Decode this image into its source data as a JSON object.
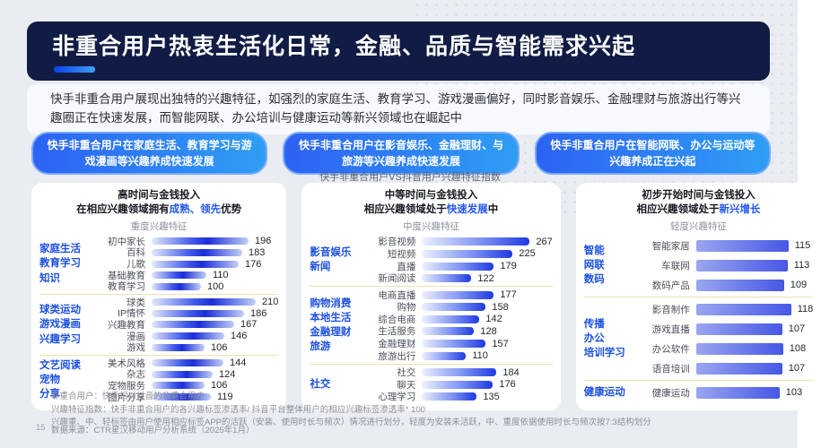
{
  "header": {
    "title": "非重合用户热衷生活化日常，金融、品质与智能需求兴起"
  },
  "intro": "快手非重合用户展现出独特的兴趣特征，如强烈的家庭生活、教育学习、游戏漫画偏好，同时影音娱乐、金融理财与旅游出行等兴趣圈正在快速发展，而智能网联、办公培训与健康运动等新兴领域也在崛起中",
  "chart_caption": "快手非重合用户VS抖音用户兴趣特征指数",
  "colors": {
    "banner_bg": "#101c44",
    "accent_blue": "#2458f0",
    "pill_gradient": [
      "#2d62f3",
      "#2f9ef4"
    ],
    "bar_deep_blue": "#1e3ae2",
    "group_label_blue": "#1d50e0",
    "separator_tan": "#eee0ae",
    "page_bg": "#e9ecf1"
  },
  "chart_data": {
    "type": "bar",
    "title": "快手非重合用户VS抖音用户兴趣特征指数",
    "note": "横向条形图三联，数值为兴趣特征指数（基准100）",
    "xlim": [
      0,
      270
    ],
    "columns": [
      {
        "pill": "快手非重合用户在家庭生活、教育学习与游戏漫画等兴趣养成快速发展",
        "subtitle_line1": "高时间与金钱投入",
        "subtitle_line2_pre": "在相应兴趣领域拥有",
        "subtitle_line2_highlight": "成熟、领先",
        "subtitle_line2_suffix": "优势",
        "degree_label": "重度兴趣特征",
        "groups": [
          {
            "label_lines": [
              "家庭生活",
              "教育学习",
              "知识"
            ],
            "rows": [
              {
                "name": "初中家长",
                "value": 196
              },
              {
                "name": "百科",
                "value": 183
              },
              {
                "name": "儿歌",
                "value": 176
              },
              {
                "name": "基础教育",
                "value": 110
              },
              {
                "name": "教育学习",
                "value": 100
              }
            ]
          },
          {
            "label_lines": [
              "球类运动",
              "游戏漫画",
              "兴趣学习"
            ],
            "rows": [
              {
                "name": "球类",
                "value": 210
              },
              {
                "name": "IP情怀",
                "value": 186
              },
              {
                "name": "兴趣教育",
                "value": 167
              },
              {
                "name": "漫画",
                "value": 146
              },
              {
                "name": "游戏",
                "value": 106
              }
            ]
          },
          {
            "label_lines": [
              "文艺阅读",
              "宠物",
              "分享"
            ],
            "rows": [
              {
                "name": "美术风格",
                "value": 144
              },
              {
                "name": "杂志",
                "value": 124
              },
              {
                "name": "宠物服务",
                "value": 106
              },
              {
                "name": "图片分享",
                "value": 119
              }
            ]
          }
        ]
      },
      {
        "pill": "快手非重合用户在影音娱乐、金融理财、与旅游等兴趣养成快速发展",
        "subtitle_line1": "中等时间与金钱投入",
        "subtitle_line2_pre": "相应兴趣领域处于",
        "subtitle_line2_highlight": "快速发展",
        "subtitle_line2_suffix": "中",
        "degree_label": "中度兴趣特征",
        "groups": [
          {
            "label_lines": [
              "影音娱乐",
              "新闻"
            ],
            "rows": [
              {
                "name": "影音视频",
                "value": 267
              },
              {
                "name": "短视频",
                "value": 225
              },
              {
                "name": "直播",
                "value": 179
              },
              {
                "name": "新闻阅读",
                "value": 122
              }
            ]
          },
          {
            "label_lines": [
              "购物消费",
              "本地生活",
              "金融理财",
              "旅游"
            ],
            "rows": [
              {
                "name": "电商直播",
                "value": 177
              },
              {
                "name": "购物",
                "value": 158
              },
              {
                "name": "综合电商",
                "value": 142
              },
              {
                "name": "生活服务",
                "value": 128
              },
              {
                "name": "金融理财",
                "value": 157
              },
              {
                "name": "旅游出行",
                "value": 110
              }
            ]
          },
          {
            "label_lines": [
              "社交"
            ],
            "rows": [
              {
                "name": "社交",
                "value": 184
              },
              {
                "name": "聊天",
                "value": 176
              },
              {
                "name": "心理学习",
                "value": 135
              }
            ]
          }
        ]
      },
      {
        "pill": "快手非重合用户在智能网联、办公与运动等兴趣养成正在兴起",
        "subtitle_line1": "初步开始时间与金钱投入",
        "subtitle_line2_pre": "相应兴趣领域处于",
        "subtitle_line2_highlight": "新兴增长",
        "subtitle_line2_suffix": "",
        "degree_label": "轻度兴趣特征",
        "groups": [
          {
            "label_lines": [
              "智能",
              "网联",
              "数码"
            ],
            "rows": [
              {
                "name": "智能家居",
                "value": 115
              },
              {
                "name": "车联网",
                "value": 113
              },
              {
                "name": "数码产品",
                "value": 109
              }
            ]
          },
          {
            "label_lines": [
              "传播",
              "办公",
              "培训学习"
            ],
            "rows": [
              {
                "name": "影音制作",
                "value": 118
              },
              {
                "name": "游戏直播",
                "value": 107
              },
              {
                "name": "办公软件",
                "value": 108
              },
              {
                "name": "语音培训",
                "value": 107
              }
            ]
          },
          {
            "label_lines": [
              "健康运动"
            ],
            "rows": [
              {
                "name": "健康运动",
                "value": 103
              }
            ]
          }
        ]
      }
    ]
  },
  "footnotes": [
    "非重合用户：快手相对抖音的非重合用户",
    "兴趣特征指数：快手非重合用户的各兴趣标签渗透率/ 抖音平台整体用户的相应兴趣标签渗透率* 100",
    "兴趣重、中、轻标签由用户使用相应标签APP的活跃（安装、使用时长与频次）情况进行划分，轻度为安装未活跃，中、重度依据使用时长与频次按7:3结构划分"
  ],
  "page": {
    "number": "15",
    "source": "数据来源：CTR星汉移动用户分析系统（2025年1月）"
  }
}
